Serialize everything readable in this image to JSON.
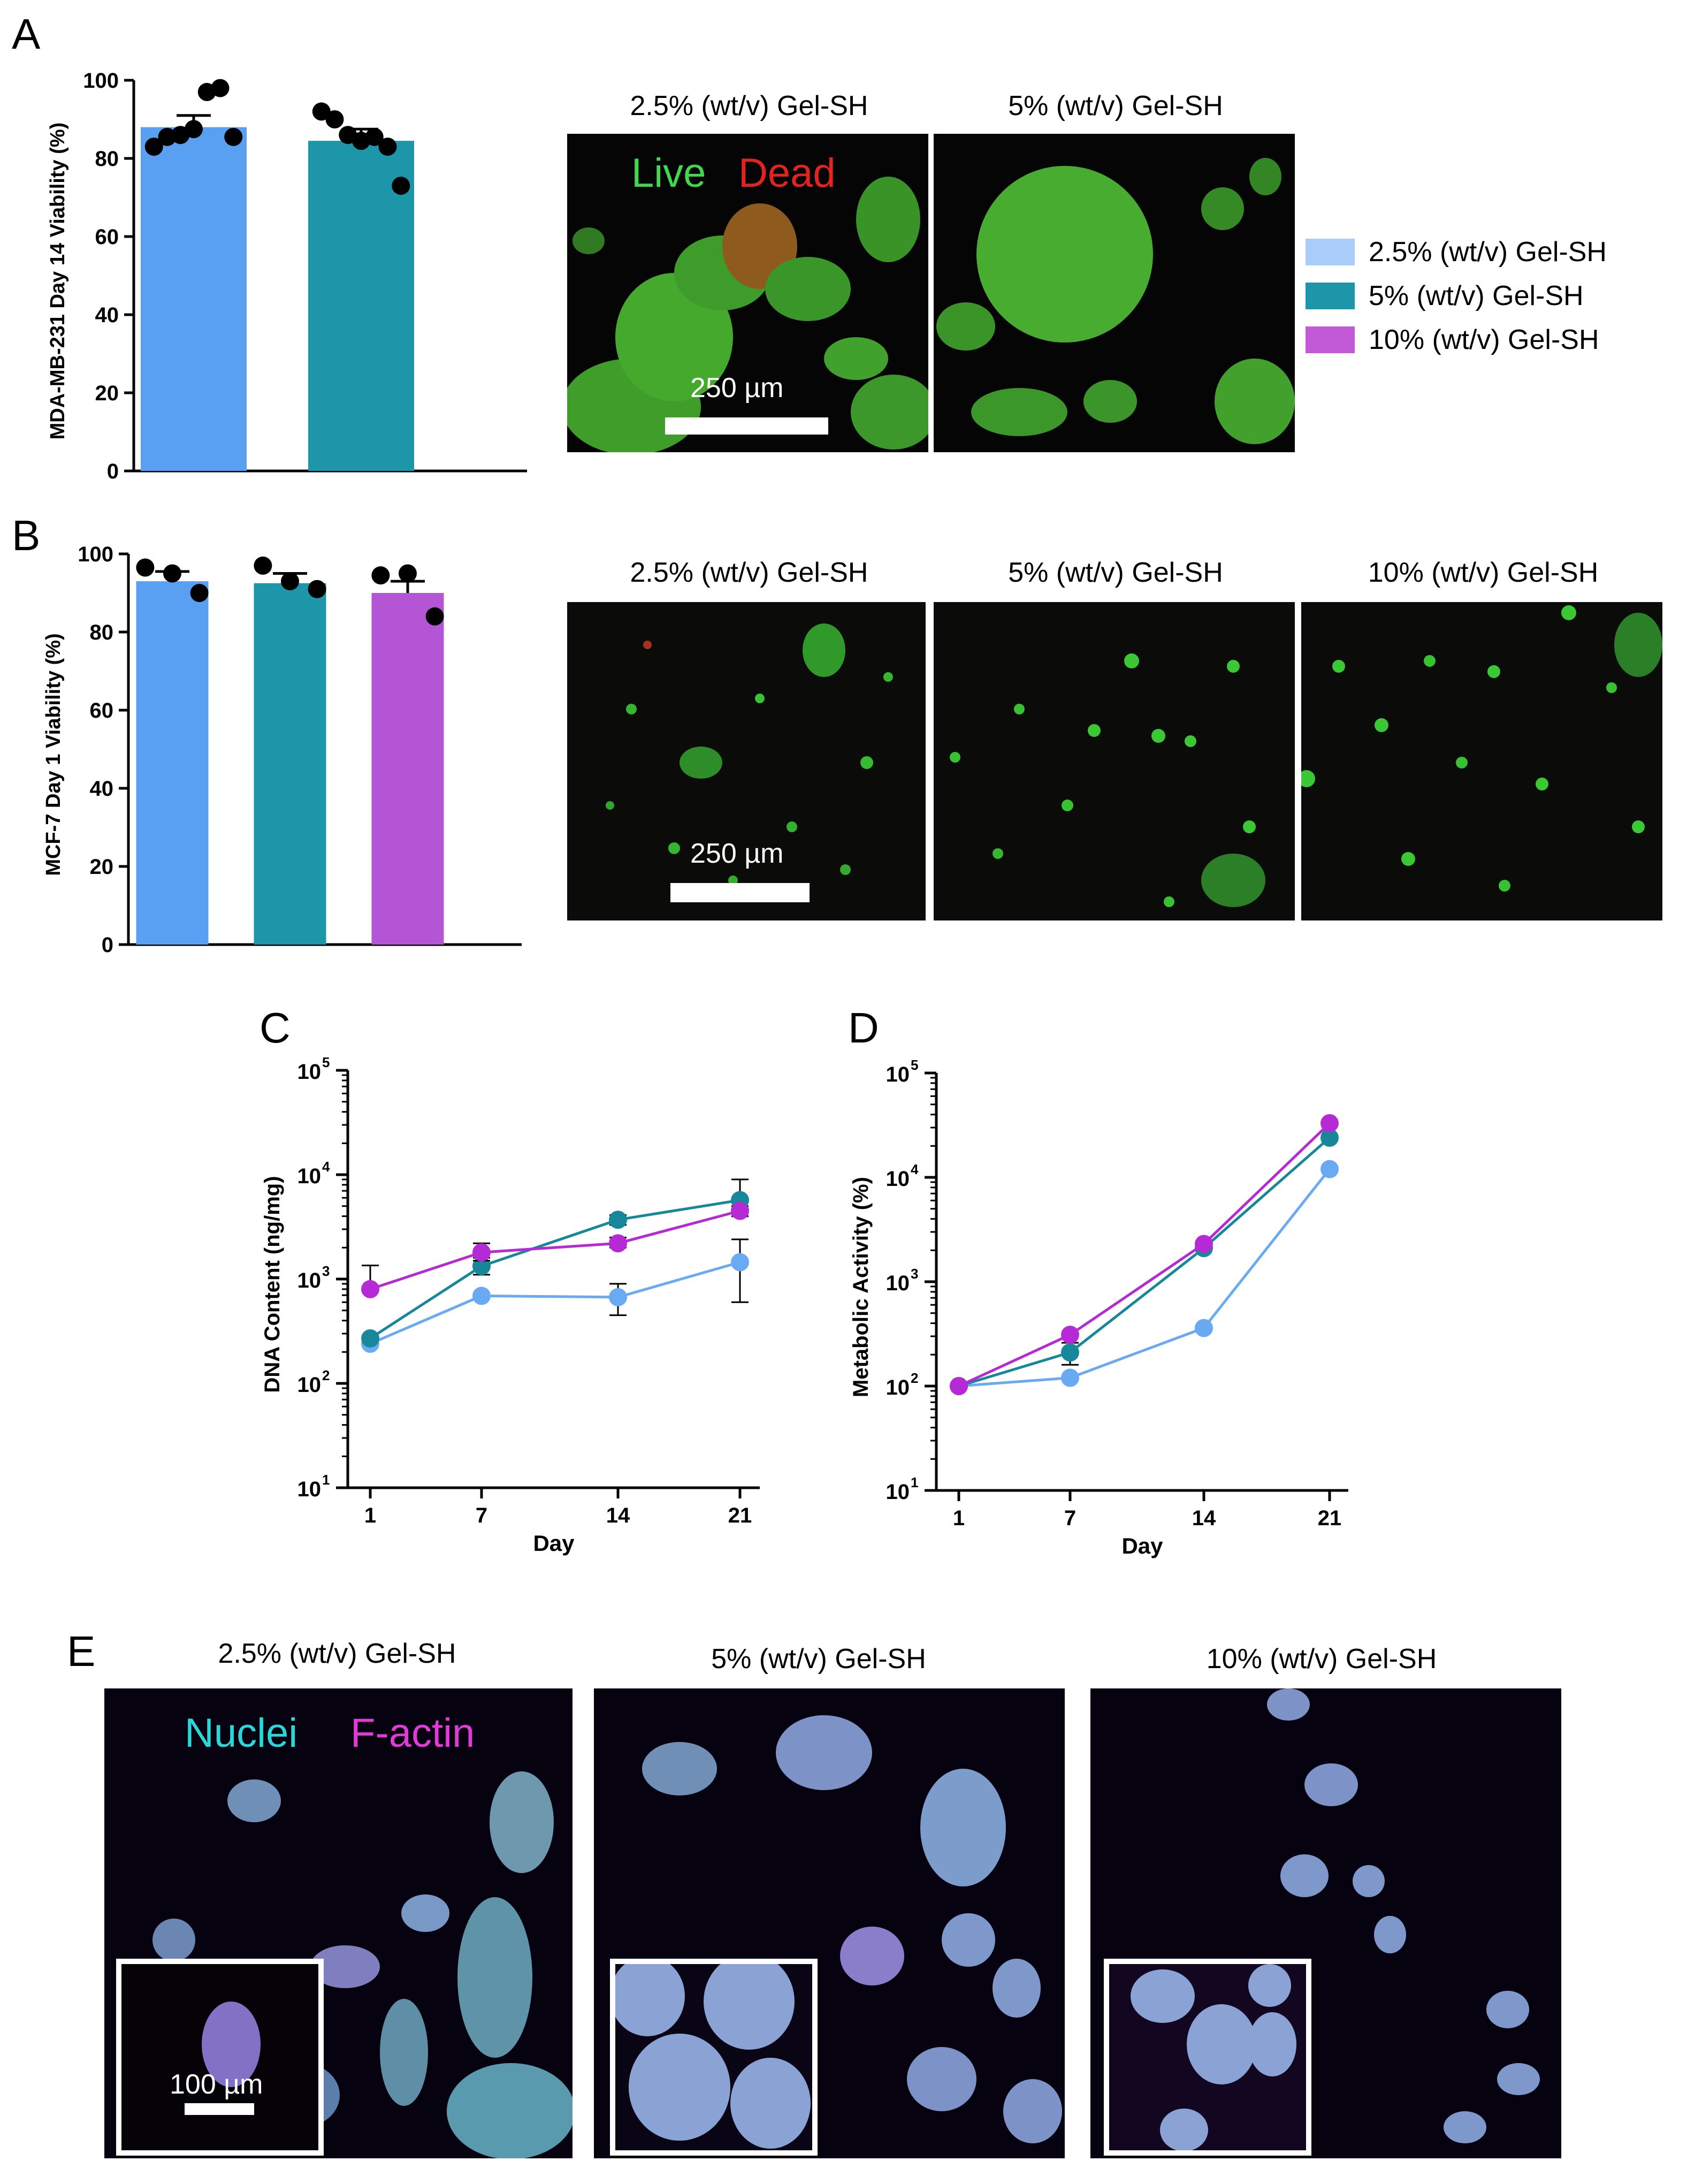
{
  "panels": {
    "a": "A",
    "b": "B",
    "c": "C",
    "d": "D",
    "e": "E"
  },
  "colors": {
    "gel25": "#5aa0f2",
    "gel5": "#1c96a8",
    "gel10": "#b455d6",
    "gel25_line": "#6aaaf2",
    "gel5_line": "#17879a",
    "gel10_line": "#b62ad6"
  },
  "legend": [
    {
      "label": "2.5% (wt/v) Gel-SH",
      "color": "#a9cdf8"
    },
    {
      "label": "5% (wt/v) Gel-SH",
      "color": "#1c96a8"
    },
    {
      "label": "10% (wt/v) Gel-SH",
      "color": "#c25ad8"
    }
  ],
  "images": {
    "a_titles": [
      "2.5% (wt/v) Gel-SH",
      "5% (wt/v) Gel-SH"
    ],
    "a_overlay_live": "Live",
    "a_overlay_dead": "Dead",
    "a_scale": "250 µm",
    "b_titles": [
      "2.5% (wt/v) Gel-SH",
      "5% (wt/v) Gel-SH",
      "10% (wt/v) Gel-SH"
    ],
    "b_scale": "250 µm",
    "e_titles": [
      "2.5% (wt/v) Gel-SH",
      "5% (wt/v) Gel-SH",
      "10% (wt/v) Gel-SH"
    ],
    "e_overlay_nuclei": "Nuclei",
    "e_overlay_factin": "F-actin",
    "e_scale": "100 µm"
  },
  "chart_data": [
    {
      "id": "A",
      "type": "bar",
      "ylabel": "MDA-MB-231 Day 14 Viability (%)",
      "ylim": [
        0,
        100
      ],
      "yticks": [
        0,
        20,
        40,
        60,
        80,
        100
      ],
      "categories": [
        "2.5% (wt/v) Gel-SH",
        "5% (wt/v) Gel-SH"
      ],
      "values": [
        88,
        84.5
      ],
      "errors": [
        3,
        3
      ],
      "points": [
        [
          83,
          85.5,
          86,
          87.5,
          97,
          98,
          85.5
        ],
        [
          92,
          90,
          86,
          84.5,
          85.5,
          83,
          73
        ]
      ]
    },
    {
      "id": "B",
      "type": "bar",
      "ylabel": "MCF-7 Day 1 Viability (%)",
      "ylim": [
        0,
        100
      ],
      "yticks": [
        0,
        20,
        40,
        60,
        80,
        100
      ],
      "categories": [
        "2.5% (wt/v) Gel-SH",
        "5% (wt/v) Gel-SH",
        "10% (wt/v) Gel-SH"
      ],
      "values": [
        93,
        92.5,
        90
      ],
      "errors": [
        2.5,
        2.5,
        3
      ],
      "points": [
        [
          96.5,
          95,
          90
        ],
        [
          97,
          93,
          91
        ],
        [
          94.5,
          95,
          84
        ]
      ]
    },
    {
      "id": "C",
      "type": "line",
      "scale": "log",
      "xlabel": "Day",
      "ylabel": "DNA Content (ng/mg)",
      "x": [
        1,
        7,
        14,
        21
      ],
      "ylim": [
        10,
        100000
      ],
      "yticks": [
        "10",
        "10",
        "10",
        "10",
        "10"
      ],
      "ytick_exponents": [
        "1",
        "2",
        "3",
        "4",
        "5"
      ],
      "series": [
        {
          "key": "gel25",
          "values": [
            240,
            690,
            670,
            1450
          ],
          "errors": [
            [
              230,
              250
            ],
            [
              650,
              730
            ],
            [
              450,
              900
            ],
            [
              600,
              2400
            ]
          ]
        },
        {
          "key": "gel5",
          "values": [
            270,
            1330,
            3700,
            5700
          ],
          "errors": [
            [
              260,
              280
            ],
            [
              1100,
              1600
            ],
            [
              3300,
              4100
            ],
            [
              4000,
              9000
            ]
          ]
        },
        {
          "key": "gel10",
          "values": [
            800,
            1800,
            2200,
            4500
          ],
          "errors": [
            [
              780,
              1350
            ],
            [
              1500,
              2200
            ],
            [
              2000,
              2500
            ],
            [
              4000,
              5000
            ]
          ]
        }
      ]
    },
    {
      "id": "D",
      "type": "line",
      "scale": "log",
      "xlabel": "Day",
      "ylabel": "Metabolic Activity (%)",
      "x": [
        1,
        7,
        14,
        21
      ],
      "ylim": [
        10,
        100000
      ],
      "yticks": [
        "10",
        "10",
        "10",
        "10",
        "10"
      ],
      "ytick_exponents": [
        "1",
        "2",
        "3",
        "4",
        "5"
      ],
      "series": [
        {
          "key": "gel25",
          "values": [
            100,
            120,
            360,
            12000
          ],
          "errors": [
            [
              100,
              100
            ],
            [
              115,
              125
            ],
            [
              350,
              370
            ],
            [
              11500,
              12500
            ]
          ]
        },
        {
          "key": "gel5",
          "values": [
            100,
            210,
            2100,
            24000
          ],
          "errors": [
            [
              100,
              100
            ],
            [
              160,
              260
            ],
            [
              2000,
              2200
            ],
            [
              23000,
              25000
            ]
          ]
        },
        {
          "key": "gel10",
          "values": [
            100,
            310,
            2300,
            33000
          ],
          "errors": [
            [
              100,
              100
            ],
            [
              300,
              320
            ],
            [
              2200,
              2400
            ],
            [
              32000,
              34000
            ]
          ]
        }
      ]
    }
  ]
}
